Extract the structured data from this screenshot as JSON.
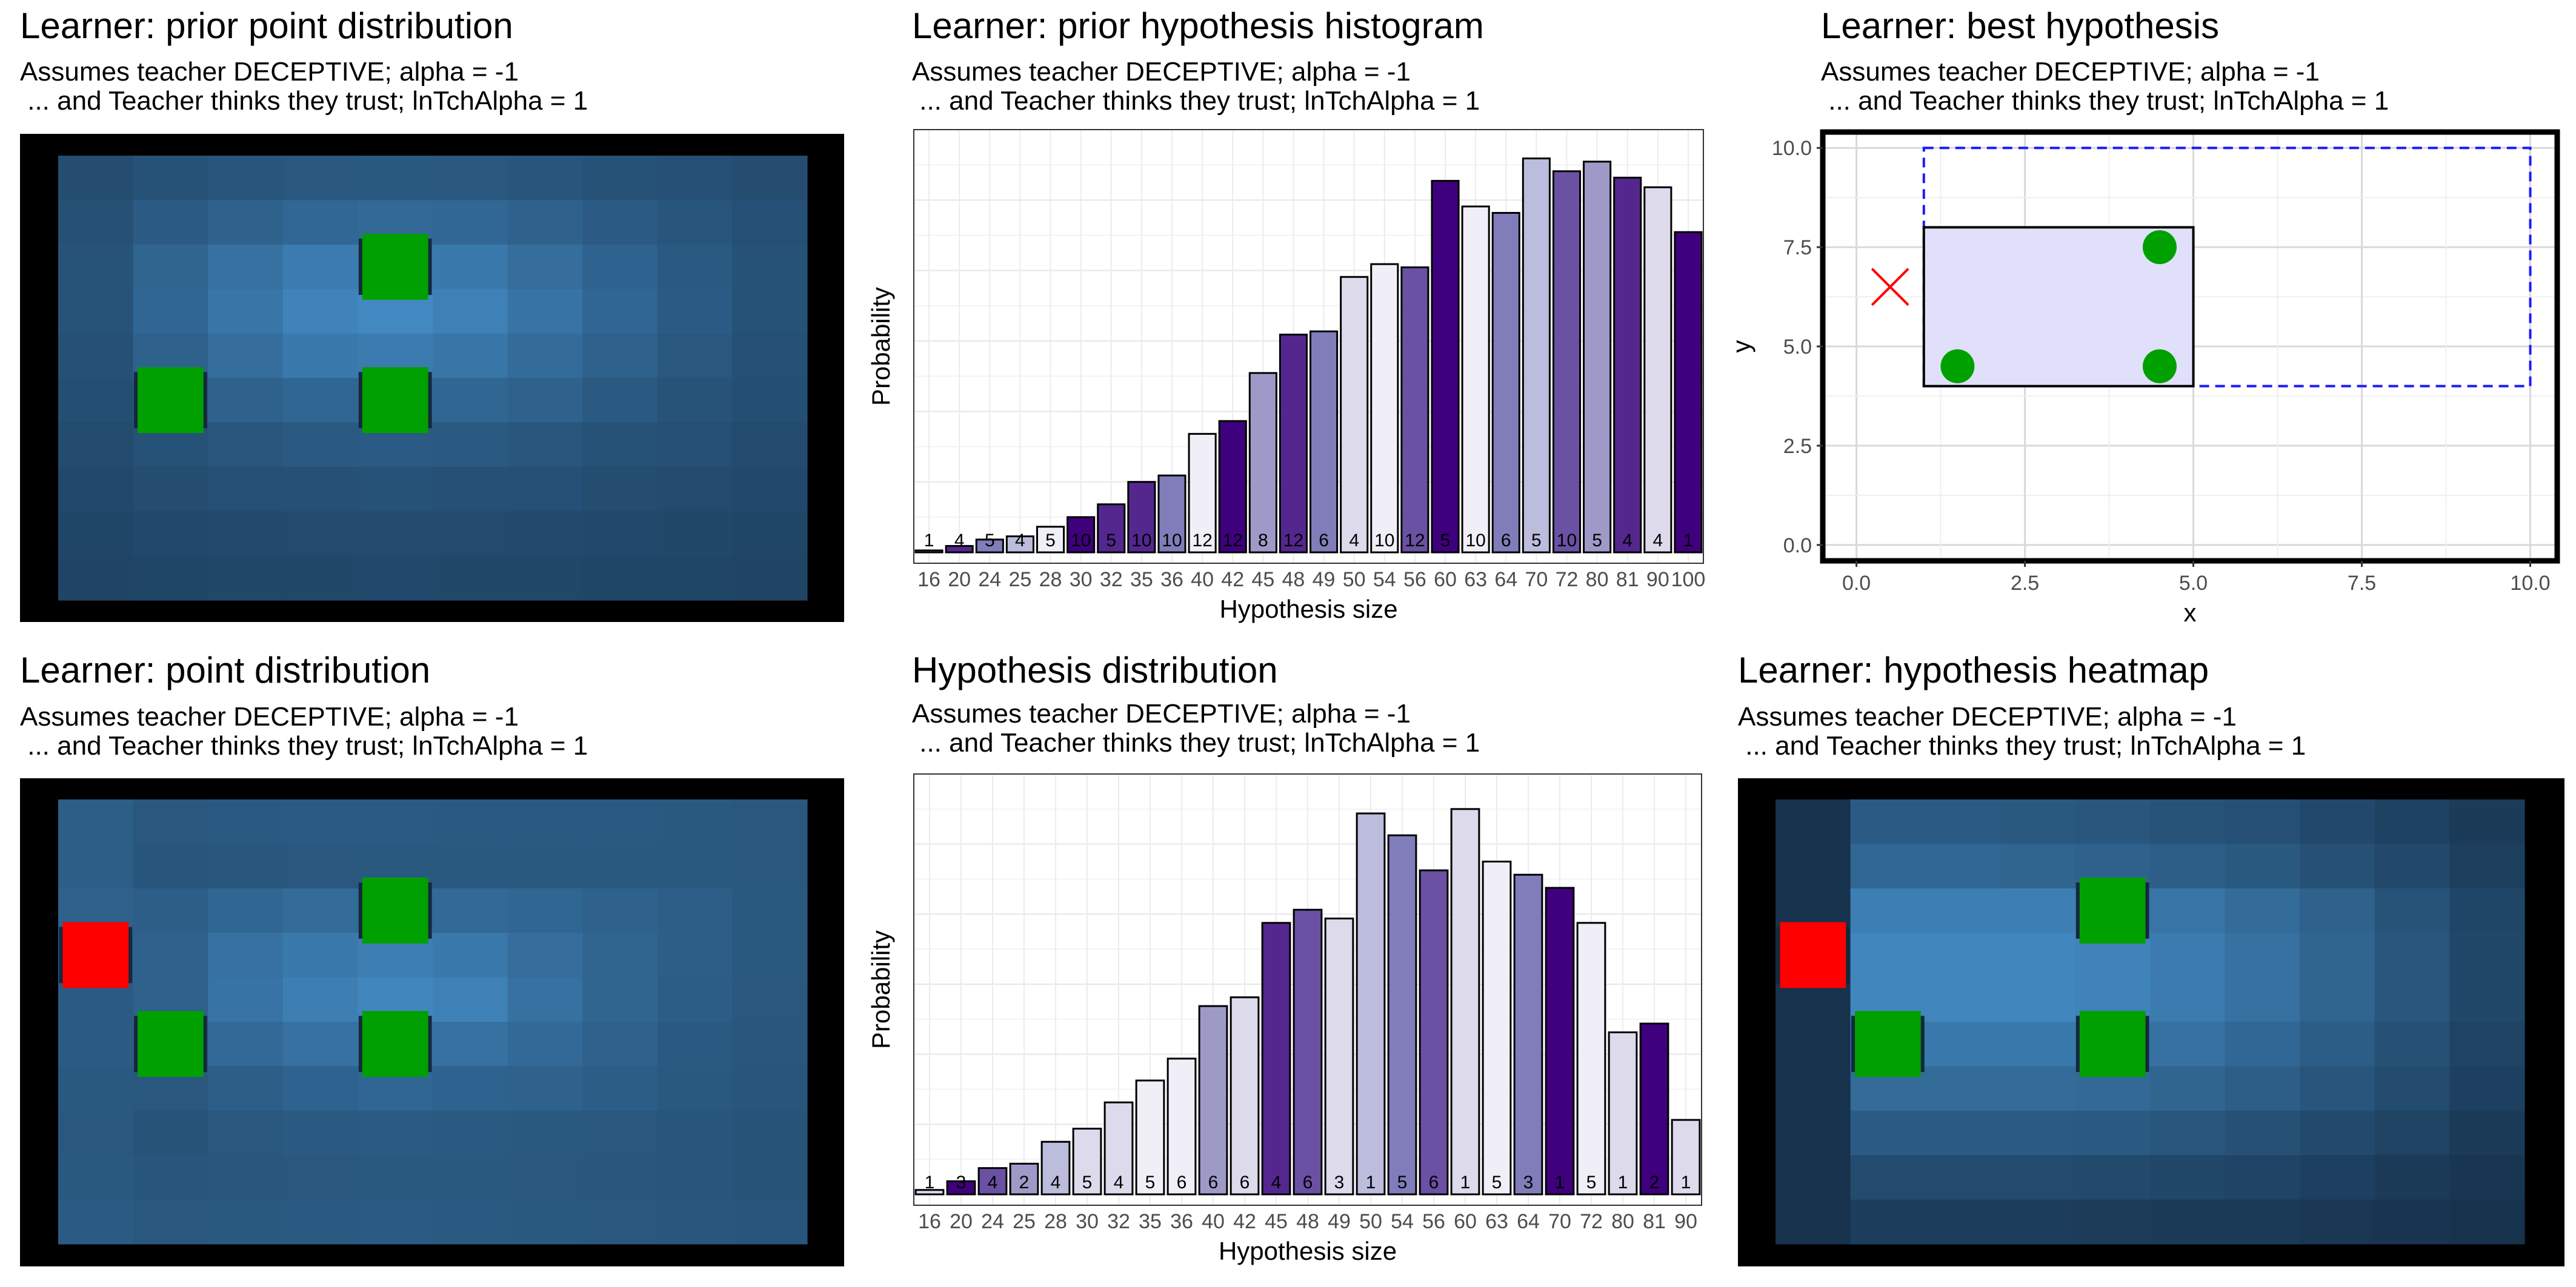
{
  "panels": [
    {
      "id": "p1",
      "title": "Learner: prior point distribution",
      "subtitle_1": "Assumes teacher DECEPTIVE; alpha = -1",
      "subtitle_2": " ... and Teacher thinks they trust; lnTchAlpha = 1"
    },
    {
      "id": "p2",
      "title": "Learner: prior hypothesis histogram",
      "subtitle_1": "Assumes teacher DECEPTIVE; alpha = -1",
      "subtitle_2": " ... and Teacher thinks they trust; lnTchAlpha = 1"
    },
    {
      "id": "p3",
      "title": "Learner: best hypothesis",
      "subtitle_1": "Assumes teacher DECEPTIVE; alpha = -1",
      "subtitle_2": " ... and Teacher thinks they trust; lnTchAlpha = 1"
    },
    {
      "id": "p4",
      "title": "Learner: point distribution",
      "subtitle_1": "Assumes teacher DECEPTIVE; alpha = -1",
      "subtitle_2": " ... and Teacher thinks they trust; lnTchAlpha = 1"
    },
    {
      "id": "p5",
      "title": "Hypothesis distribution",
      "subtitle_1": "Assumes teacher DECEPTIVE; alpha = -1",
      "subtitle_2": " ... and Teacher thinks they trust; lnTchAlpha = 1"
    },
    {
      "id": "p6",
      "title": "Learner: hypothesis heatmap",
      "subtitle_1": "Assumes teacher DECEPTIVE; alpha = -1",
      "subtitle_2": " ... and Teacher thinks they trust; lnTchAlpha = 1"
    }
  ],
  "colors": {
    "green_point": "#00a000",
    "red_point": "#ff0000",
    "frame": "#000000",
    "bar_outline": "#000000"
  },
  "chart_data": [
    {
      "type": "heatmap",
      "panel": "p1",
      "xrange": [
        0,
        10
      ],
      "yrange": [
        0,
        6
      ],
      "values": [
        [
          0.25,
          0.29,
          0.31,
          0.33,
          0.34,
          0.33,
          0.31,
          0.29,
          0.27,
          0.25
        ],
        [
          0.28,
          0.36,
          0.41,
          0.45,
          0.46,
          0.45,
          0.41,
          0.36,
          0.31,
          0.27
        ],
        [
          0.3,
          0.43,
          0.52,
          0.6,
          0.62,
          0.58,
          0.5,
          0.42,
          0.35,
          0.29
        ],
        [
          0.3,
          0.44,
          0.56,
          0.66,
          0.7,
          0.64,
          0.54,
          0.44,
          0.36,
          0.29
        ],
        [
          0.28,
          0.4,
          0.5,
          0.58,
          0.6,
          0.56,
          0.48,
          0.4,
          0.33,
          0.27
        ],
        [
          0.26,
          0.34,
          0.4,
          0.44,
          0.46,
          0.44,
          0.4,
          0.35,
          0.3,
          0.26
        ],
        [
          0.24,
          0.29,
          0.32,
          0.35,
          0.36,
          0.35,
          0.32,
          0.29,
          0.27,
          0.24
        ],
        [
          0.22,
          0.25,
          0.27,
          0.28,
          0.29,
          0.28,
          0.27,
          0.25,
          0.24,
          0.22
        ],
        [
          0.2,
          0.22,
          0.23,
          0.24,
          0.24,
          0.24,
          0.23,
          0.22,
          0.21,
          0.2
        ],
        [
          0.19,
          0.2,
          0.21,
          0.21,
          0.22,
          0.21,
          0.21,
          0.2,
          0.2,
          0.19
        ]
      ],
      "points": [
        {
          "x": 4.5,
          "y": 7.5,
          "kind": "positive"
        },
        {
          "x": 1.5,
          "y": 4.5,
          "kind": "positive"
        },
        {
          "x": 4.5,
          "y": 4.5,
          "kind": "positive"
        }
      ]
    },
    {
      "type": "bar",
      "panel": "p2",
      "xlabel": "Hypothesis size",
      "ylabel": "Probability",
      "categories": [
        "16",
        "20",
        "24",
        "25",
        "28",
        "30",
        "32",
        "35",
        "36",
        "40",
        "42",
        "45",
        "48",
        "49",
        "50",
        "54",
        "56",
        "60",
        "63",
        "64",
        "70",
        "72",
        "80",
        "81",
        "90",
        "100"
      ],
      "values": [
        0.3,
        1.0,
        2.0,
        2.5,
        4.0,
        5.5,
        7.5,
        11.0,
        12.0,
        18.5,
        20.5,
        28.0,
        34.0,
        34.5,
        43.0,
        45.0,
        44.5,
        58.0,
        54.0,
        53.0,
        61.5,
        59.5,
        61.0,
        58.5,
        57.0,
        50.0
      ],
      "counts": [
        "1",
        "4",
        "5",
        "4",
        "5",
        "10",
        "5",
        "10",
        "10",
        "12",
        "12",
        "8",
        "12",
        "6",
        "4",
        "10",
        "12",
        "5",
        "10",
        "6",
        "5",
        "10",
        "5",
        "4",
        "4",
        "1"
      ],
      "ylim": [
        0,
        66
      ]
    },
    {
      "type": "scatter",
      "panel": "p3",
      "xlabel": "x",
      "ylabel": "y",
      "xlim": [
        -0.5,
        10.4
      ],
      "ylim": [
        -0.4,
        10.4
      ],
      "x_ticks": [
        "0.0",
        "2.5",
        "5.0",
        "7.5",
        "10.0"
      ],
      "y_ticks": [
        "0.0",
        "2.5",
        "5.0",
        "7.5",
        "10.0"
      ],
      "best_rect": {
        "x0": 1,
        "x1": 5,
        "y0": 4,
        "y1": 8
      },
      "dashed_rect": {
        "x0": 1,
        "x1": 10,
        "y0": 4,
        "y1": 10
      },
      "positive_points": [
        {
          "x": 4.5,
          "y": 7.5
        },
        {
          "x": 1.5,
          "y": 4.5
        },
        {
          "x": 4.5,
          "y": 4.5
        }
      ],
      "negative_points": [
        {
          "x": 0.5,
          "y": 6.5
        }
      ]
    },
    {
      "type": "heatmap",
      "panel": "p4",
      "xrange": [
        0,
        10
      ],
      "yrange": [
        0,
        6
      ],
      "values": [
        [
          0.38,
          0.33,
          0.35,
          0.36,
          0.36,
          0.35,
          0.35,
          0.35,
          0.34,
          0.33
        ],
        [
          0.38,
          0.31,
          0.32,
          0.33,
          0.34,
          0.34,
          0.34,
          0.34,
          0.34,
          0.33
        ],
        [
          0.4,
          0.38,
          0.44,
          0.48,
          0.46,
          0.46,
          0.44,
          0.41,
          0.38,
          0.34
        ],
        [
          0.38,
          0.4,
          0.52,
          0.58,
          0.62,
          0.58,
          0.5,
          0.43,
          0.38,
          0.34
        ],
        [
          0.36,
          0.4,
          0.54,
          0.62,
          0.68,
          0.64,
          0.52,
          0.43,
          0.37,
          0.33
        ],
        [
          0.36,
          0.37,
          0.46,
          0.52,
          0.56,
          0.52,
          0.46,
          0.4,
          0.35,
          0.32
        ],
        [
          0.34,
          0.33,
          0.38,
          0.42,
          0.44,
          0.42,
          0.4,
          0.37,
          0.34,
          0.31
        ],
        [
          0.33,
          0.3,
          0.33,
          0.35,
          0.36,
          0.35,
          0.34,
          0.33,
          0.31,
          0.3
        ],
        [
          0.34,
          0.31,
          0.32,
          0.33,
          0.34,
          0.34,
          0.33,
          0.32,
          0.31,
          0.3
        ],
        [
          0.36,
          0.33,
          0.34,
          0.35,
          0.36,
          0.35,
          0.34,
          0.33,
          0.32,
          0.31
        ]
      ],
      "points": [
        {
          "x": 4.5,
          "y": 7.5,
          "kind": "positive"
        },
        {
          "x": 1.5,
          "y": 4.5,
          "kind": "positive"
        },
        {
          "x": 4.5,
          "y": 4.5,
          "kind": "positive"
        },
        {
          "x": 0.5,
          "y": 6.5,
          "kind": "negative"
        }
      ]
    },
    {
      "type": "bar",
      "panel": "p5",
      "xlabel": "Hypothesis size",
      "ylabel": "Probability",
      "categories": [
        "16",
        "20",
        "24",
        "25",
        "28",
        "30",
        "32",
        "35",
        "36",
        "40",
        "42",
        "45",
        "48",
        "49",
        "50",
        "54",
        "56",
        "60",
        "63",
        "64",
        "70",
        "72",
        "80",
        "81",
        "90"
      ],
      "values": [
        0.5,
        1.5,
        3.0,
        3.5,
        6.0,
        7.5,
        10.5,
        13.0,
        15.5,
        21.5,
        22.5,
        31.0,
        32.5,
        31.5,
        43.5,
        41.0,
        37.0,
        44.0,
        38.0,
        36.5,
        35.0,
        31.0,
        18.5,
        19.5,
        8.5
      ],
      "counts": [
        "1",
        "3",
        "4",
        "2",
        "4",
        "5",
        "4",
        "5",
        "6",
        "6",
        "6",
        "4",
        "6",
        "3",
        "1",
        "5",
        "6",
        "1",
        "5",
        "3",
        "1",
        "5",
        "1",
        "2",
        "1"
      ],
      "ylim": [
        0,
        48
      ]
    },
    {
      "type": "heatmap",
      "panel": "p6",
      "xrange": [
        0,
        10
      ],
      "yrange": [
        0,
        6
      ],
      "values": [
        [
          0.05,
          0.36,
          0.36,
          0.34,
          0.32,
          0.3,
          0.27,
          0.22,
          0.17,
          0.12
        ],
        [
          0.05,
          0.45,
          0.45,
          0.43,
          0.41,
          0.38,
          0.34,
          0.28,
          0.22,
          0.15
        ],
        [
          0.05,
          0.62,
          0.62,
          0.62,
          0.6,
          0.55,
          0.48,
          0.4,
          0.3,
          0.2
        ],
        [
          0.05,
          0.68,
          0.68,
          0.68,
          0.66,
          0.6,
          0.52,
          0.43,
          0.32,
          0.21
        ],
        [
          0.05,
          0.68,
          0.68,
          0.68,
          0.66,
          0.6,
          0.52,
          0.43,
          0.32,
          0.21
        ],
        [
          0.05,
          0.58,
          0.58,
          0.58,
          0.56,
          0.52,
          0.45,
          0.37,
          0.28,
          0.18
        ],
        [
          0.05,
          0.48,
          0.48,
          0.48,
          0.46,
          0.43,
          0.38,
          0.31,
          0.24,
          0.16
        ],
        [
          0.05,
          0.36,
          0.36,
          0.36,
          0.35,
          0.32,
          0.28,
          0.23,
          0.18,
          0.12
        ],
        [
          0.05,
          0.24,
          0.24,
          0.24,
          0.23,
          0.21,
          0.19,
          0.16,
          0.12,
          0.08
        ],
        [
          0.05,
          0.14,
          0.14,
          0.14,
          0.13,
          0.12,
          0.11,
          0.09,
          0.07,
          0.05
        ]
      ],
      "points": [
        {
          "x": 4.5,
          "y": 7.5,
          "kind": "positive"
        },
        {
          "x": 1.5,
          "y": 4.5,
          "kind": "positive"
        },
        {
          "x": 4.5,
          "y": 4.5,
          "kind": "positive"
        },
        {
          "x": 0.5,
          "y": 6.5,
          "kind": "negative"
        }
      ]
    }
  ]
}
